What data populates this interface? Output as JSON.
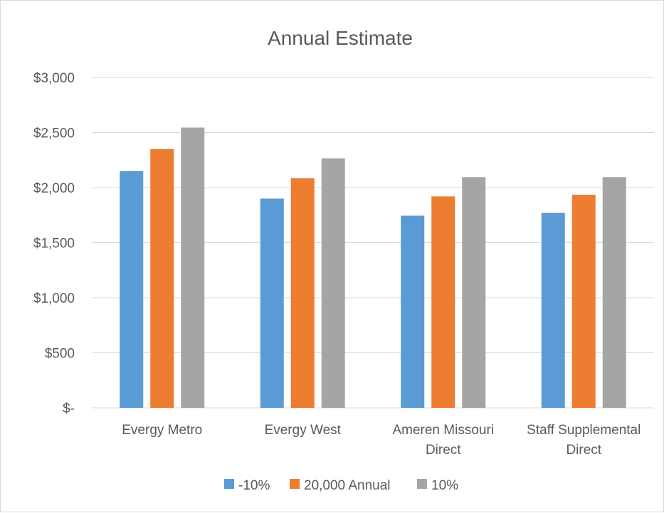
{
  "chart_data": {
    "type": "bar",
    "title": "Annual Estimate",
    "xlabel": "",
    "ylabel": "",
    "categories": [
      [
        "Evergy Metro"
      ],
      [
        "Evergy West"
      ],
      [
        "Ameren Missouri",
        "Direct"
      ],
      [
        "Staff Supplemental",
        "Direct"
      ]
    ],
    "series": [
      {
        "name": "-10%",
        "color": "#5b9bd5",
        "values": [
          2150,
          1900,
          1745,
          1770
        ]
      },
      {
        "name": "20,000 Annual",
        "color": "#ed7d31",
        "values": [
          2350,
          2085,
          1920,
          1935
        ]
      },
      {
        "name": "10%",
        "color": "#a5a5a5",
        "values": [
          2545,
          2265,
          2095,
          2095
        ]
      }
    ],
    "ylim": [
      0,
      3000
    ],
    "yticks": [
      0,
      500,
      1000,
      1500,
      2000,
      2500,
      3000
    ],
    "ytick_labels": [
      "$-",
      "$500",
      "$1,000",
      "$1,500",
      "$2,000",
      "$2,500",
      "$3,000"
    ],
    "grid": true,
    "legend_position": "bottom"
  }
}
